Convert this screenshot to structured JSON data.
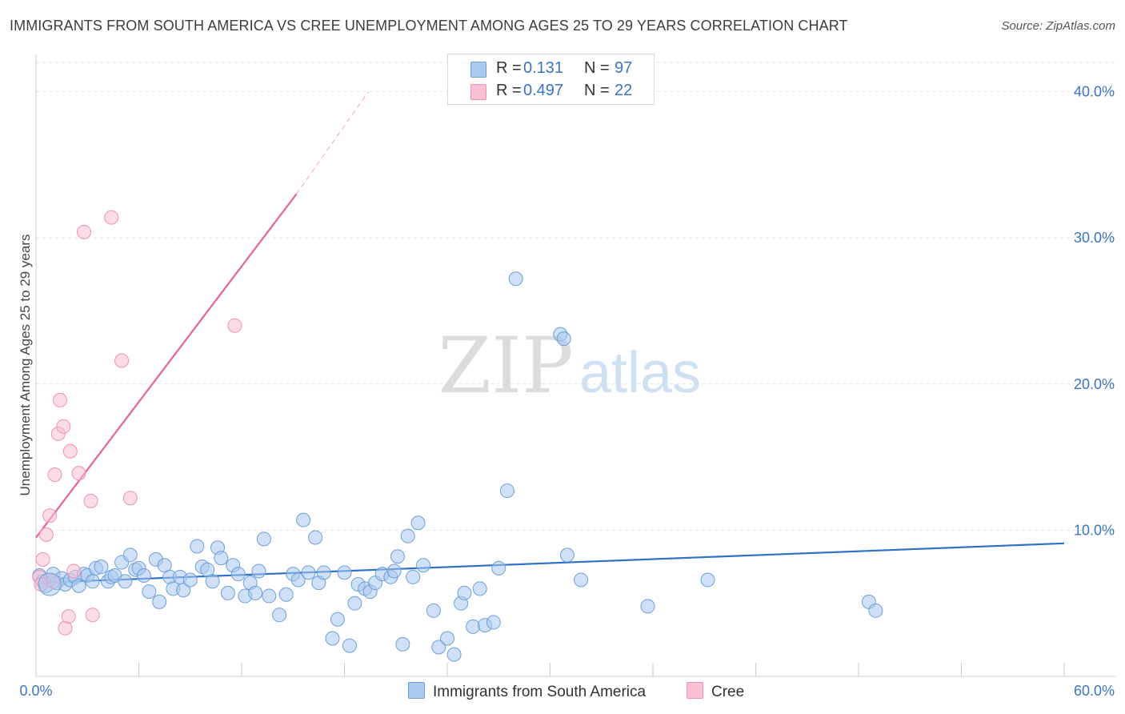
{
  "header": {
    "title": "IMMIGRANTS FROM SOUTH AMERICA VS CREE UNEMPLOYMENT AMONG AGES 25 TO 29 YEARS CORRELATION CHART",
    "source": "Source: ZipAtlas.com"
  },
  "watermark": {
    "zip": "ZIP",
    "atlas": "atlas"
  },
  "legend": {
    "rows": [
      {
        "r_label": "R =",
        "r_value": "0.131",
        "n_label": "N =",
        "n_value": "97",
        "color": "#a9c9f0",
        "border": "#6e9fd8"
      },
      {
        "r_label": "R =",
        "r_value": "0.497",
        "n_label": "N =",
        "n_value": "22",
        "color": "#f9c0d2",
        "border": "#ef93b1"
      }
    ]
  },
  "bottom_legend": {
    "items": [
      {
        "label": "Immigrants from South America",
        "color": "#a9c9f0",
        "border": "#6e9fd8"
      },
      {
        "label": "Cree",
        "color": "#f9c0d2",
        "border": "#ef93b1"
      }
    ]
  },
  "chart_data": {
    "type": "scatter",
    "title": "IMMIGRANTS FROM SOUTH AMERICA VS CREE UNEMPLOYMENT AMONG AGES 25 TO 29 YEARS CORRELATION CHART",
    "xlabel": "",
    "ylabel": "Unemployment Among Ages 25 to 29 years",
    "xlim": [
      0,
      60
    ],
    "ylim": [
      0,
      42
    ],
    "x_tick_labels": [
      {
        "value": 0,
        "label": "0.0%"
      },
      {
        "value": 60,
        "label": "60.0%"
      }
    ],
    "y_tick_labels": [
      {
        "value": 10,
        "label": "10.0%"
      },
      {
        "value": 20,
        "label": "20.0%"
      },
      {
        "value": 30,
        "label": "30.0%"
      },
      {
        "value": 40,
        "label": "40.0%"
      }
    ],
    "y_gridlines": [
      10,
      20,
      30,
      40
    ],
    "x_minor_ticks": [
      6,
      12,
      18,
      24,
      30,
      36,
      42,
      48,
      54,
      60
    ],
    "grid": true,
    "legend_position": "top-center",
    "series": [
      {
        "name": "Immigrants from South America",
        "color": "#6e9fd8",
        "fill": "#a9c9f0",
        "trend": {
          "x": [
            0,
            60
          ],
          "y": [
            6.4,
            9.1
          ],
          "color": "#2f70c8"
        },
        "points": [
          [
            0.2,
            6.9
          ],
          [
            0.4,
            6.5
          ],
          [
            0.6,
            6.2
          ],
          [
            0.8,
            6.6
          ],
          [
            1.0,
            7.0
          ],
          [
            1.2,
            6.4
          ],
          [
            1.5,
            6.7
          ],
          [
            1.7,
            6.3
          ],
          [
            2.0,
            6.6
          ],
          [
            2.3,
            6.8
          ],
          [
            2.5,
            6.2
          ],
          [
            2.8,
            7.0
          ],
          [
            3.0,
            6.9
          ],
          [
            3.3,
            6.5
          ],
          [
            3.5,
            7.4
          ],
          [
            3.8,
            7.5
          ],
          [
            4.2,
            6.5
          ],
          [
            4.4,
            6.8
          ],
          [
            4.6,
            6.9
          ],
          [
            5.0,
            7.8
          ],
          [
            5.2,
            6.5
          ],
          [
            5.5,
            8.3
          ],
          [
            5.8,
            7.3
          ],
          [
            6.0,
            7.4
          ],
          [
            6.3,
            6.9
          ],
          [
            6.6,
            5.8
          ],
          [
            7.0,
            8.0
          ],
          [
            7.2,
            5.1
          ],
          [
            7.5,
            7.6
          ],
          [
            7.8,
            6.8
          ],
          [
            8.0,
            6.0
          ],
          [
            8.4,
            6.8
          ],
          [
            8.6,
            5.9
          ],
          [
            9.0,
            6.6
          ],
          [
            9.4,
            8.9
          ],
          [
            9.7,
            7.5
          ],
          [
            10.0,
            7.3
          ],
          [
            10.3,
            6.5
          ],
          [
            10.6,
            8.8
          ],
          [
            10.8,
            8.1
          ],
          [
            11.2,
            5.7
          ],
          [
            11.5,
            7.6
          ],
          [
            11.8,
            7.0
          ],
          [
            12.2,
            5.5
          ],
          [
            12.5,
            6.4
          ],
          [
            12.8,
            5.7
          ],
          [
            13.0,
            7.2
          ],
          [
            13.3,
            9.4
          ],
          [
            13.6,
            5.5
          ],
          [
            14.2,
            4.2
          ],
          [
            14.6,
            5.6
          ],
          [
            15.0,
            7.0
          ],
          [
            15.3,
            6.6
          ],
          [
            15.6,
            10.7
          ],
          [
            15.9,
            7.1
          ],
          [
            16.3,
            9.5
          ],
          [
            16.5,
            6.4
          ],
          [
            16.8,
            7.1
          ],
          [
            17.3,
            2.6
          ],
          [
            17.6,
            3.9
          ],
          [
            18.0,
            7.1
          ],
          [
            18.3,
            2.1
          ],
          [
            18.6,
            5.0
          ],
          [
            18.8,
            6.3
          ],
          [
            19.2,
            6.0
          ],
          [
            19.5,
            5.8
          ],
          [
            19.8,
            6.4
          ],
          [
            20.2,
            7.0
          ],
          [
            20.7,
            6.8
          ],
          [
            20.9,
            7.2
          ],
          [
            21.1,
            8.2
          ],
          [
            21.4,
            2.2
          ],
          [
            21.7,
            9.6
          ],
          [
            22.0,
            6.8
          ],
          [
            22.3,
            10.5
          ],
          [
            22.6,
            7.6
          ],
          [
            23.2,
            4.5
          ],
          [
            23.5,
            2.0
          ],
          [
            24.0,
            2.6
          ],
          [
            24.4,
            1.5
          ],
          [
            24.8,
            5.0
          ],
          [
            25.0,
            5.7
          ],
          [
            25.5,
            3.4
          ],
          [
            25.9,
            6.0
          ],
          [
            26.2,
            3.5
          ],
          [
            26.7,
            3.7
          ],
          [
            27.0,
            7.4
          ],
          [
            27.5,
            12.7
          ],
          [
            28.0,
            27.2
          ],
          [
            30.6,
            23.4
          ],
          [
            30.8,
            23.1
          ],
          [
            31.0,
            8.3
          ],
          [
            31.8,
            6.6
          ],
          [
            35.7,
            4.8
          ],
          [
            39.2,
            6.6
          ],
          [
            48.6,
            5.1
          ],
          [
            49.0,
            4.5
          ]
        ]
      },
      {
        "name": "Cree",
        "color": "#ef93b1",
        "fill": "#f9c0d2",
        "trend": {
          "x": [
            0,
            15.2
          ],
          "y": [
            9.5,
            33.0
          ],
          "dashed_to": [
            19.4,
            40.0
          ],
          "color": "#e8638f"
        },
        "points": [
          [
            0.2,
            6.8
          ],
          [
            0.4,
            8.0
          ],
          [
            0.6,
            9.7
          ],
          [
            0.8,
            11.0
          ],
          [
            1.0,
            6.5
          ],
          [
            1.1,
            13.8
          ],
          [
            1.3,
            16.6
          ],
          [
            1.4,
            18.9
          ],
          [
            1.6,
            17.1
          ],
          [
            1.7,
            3.3
          ],
          [
            1.9,
            4.1
          ],
          [
            2.0,
            15.4
          ],
          [
            2.2,
            7.2
          ],
          [
            2.5,
            13.9
          ],
          [
            2.8,
            30.4
          ],
          [
            3.2,
            12.0
          ],
          [
            3.3,
            4.2
          ],
          [
            4.4,
            31.4
          ],
          [
            5.0,
            21.6
          ],
          [
            5.5,
            12.2
          ],
          [
            11.6,
            24.0
          ],
          [
            0.3,
            6.3
          ]
        ]
      }
    ]
  }
}
